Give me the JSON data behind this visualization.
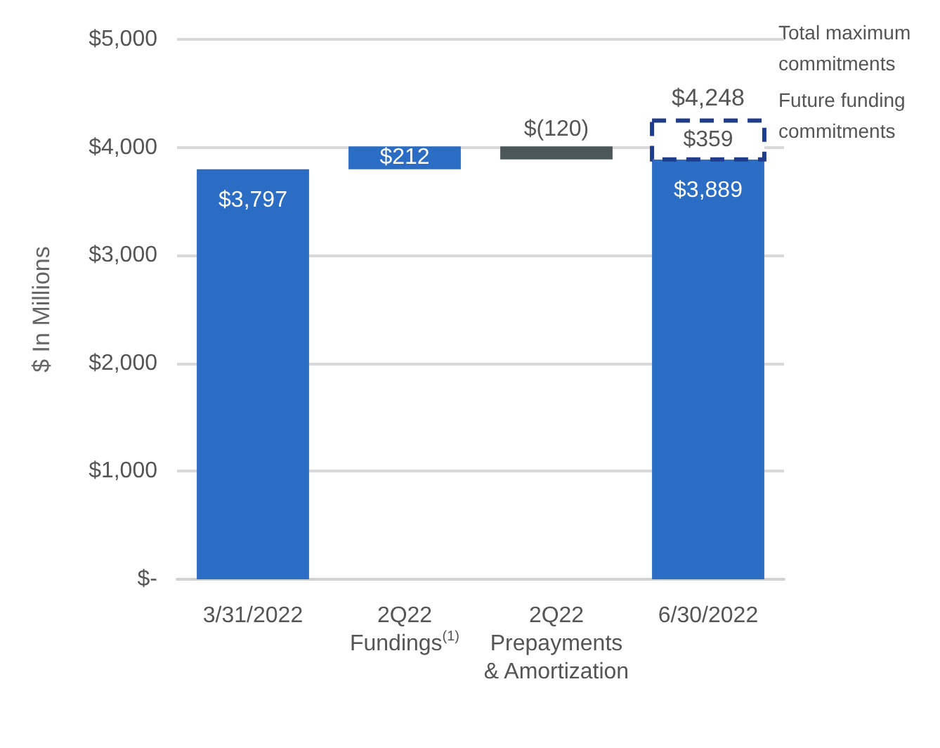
{
  "chart_data": {
    "type": "bar",
    "categories": [
      "3/31/2022",
      "2Q22\nFundings$^{(1)}$",
      "2Q22\nPrepayments\n& Amortization",
      "6/30/2022"
    ],
    "ylabel": "$ In Millions",
    "series": [
      {
        "colors": [
          "#2b6cc4",
          "#2b6cc4",
          "#4b5758",
          "#2b6cc4"
        ],
        "base": [
          0,
          3797,
          4009,
          0
        ],
        "values": [
          3797,
          212,
          -120,
          3889
        ],
        "value_labels": [
          "$3,797",
          "$212",
          "$(120)",
          "$3,889"
        ]
      },
      {
        "color": "#1f3d8c",
        "line_style": "dashed",
        "base": [
          null,
          null,
          null,
          3889
        ],
        "values": [
          null,
          null,
          null,
          359
        ],
        "value_labels": [
          null,
          null,
          null,
          "$359"
        ]
      }
    ],
    "totals": [
      null,
      null,
      null,
      "$4,248"
    ],
    "annotations": [
      "Total maximum commitments",
      "Future funding commitments"
    ],
    "ylim": [
      0,
      5000
    ],
    "yticks": [
      {
        "value": 0,
        "label": "$-"
      },
      {
        "value": 1000,
        "label": "$1,000"
      },
      {
        "value": 2000,
        "label": "$2,000"
      },
      {
        "value": 3000,
        "label": "$3,000"
      },
      {
        "value": 4000,
        "label": "$4,000"
      },
      {
        "value": 5000,
        "label": "$5,000"
      }
    ],
    "grid": "y"
  }
}
